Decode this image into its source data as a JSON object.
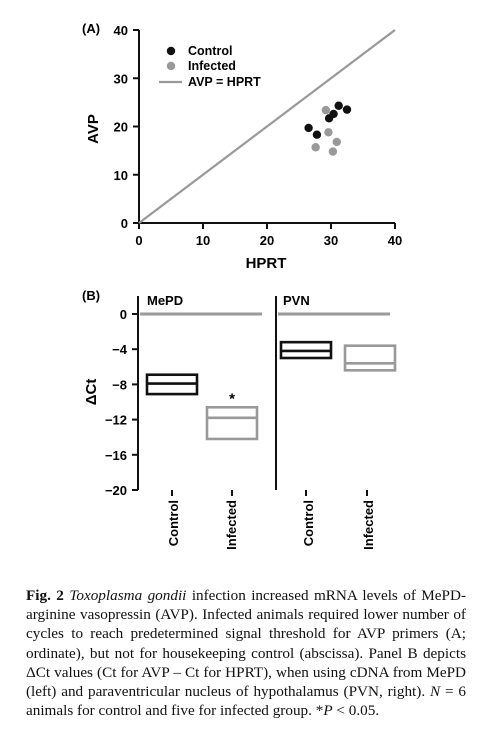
{
  "panelA": {
    "label": "(A)",
    "xlabel": "HPRT",
    "ylabel": "AVP",
    "xticks": [
      "0",
      "10",
      "20",
      "30",
      "40"
    ],
    "yticks": [
      "0",
      "10",
      "20",
      "30",
      "40"
    ],
    "legend": {
      "control": "Control",
      "infected": "Infected",
      "line": "AVP = HPRT"
    }
  },
  "panelB": {
    "label": "(B)",
    "ylabel": "ΔCt",
    "yticks": [
      "0",
      "−4",
      "−8",
      "−12",
      "−16",
      "−20"
    ],
    "left_title": "MePD",
    "right_title": "PVN",
    "xcat_control": "Control",
    "xcat_infected": "Infected",
    "star": "*"
  },
  "caption": {
    "fig_label": "Fig. 2",
    "species": "Toxoplasma gondii",
    "part1": " infection increased mRNA levels of MePD- arginine vasopressin (AVP). Infected animals required lower number of cycles to reach predetermined signal threshold for AVP primers (A; ordinate), but not for housekeeping control (abscissa). Panel B depicts ΔCt values (Ct for AVP – Ct for HPRT), when using cDNA from MePD (left) and paraventricular nucleus of hypothalamus (PVN, right). ",
    "n_label": "N",
    "part2": " = 6 animals for control and five for infected group. *",
    "p_label": "P",
    "part3": " < 0.05."
  },
  "chart_data": [
    {
      "type": "scatter",
      "xlabel": "HPRT",
      "ylabel": "AVP",
      "xlim": [
        0,
        40
      ],
      "ylim": [
        0,
        40
      ],
      "grid": false,
      "legend_position": "top-left",
      "colors": {
        "control": "#111111",
        "infected": "#999999",
        "line": "#999999"
      },
      "series": [
        {
          "name": "Control",
          "points": [
            [
              26.5,
              19.7
            ],
            [
              27.8,
              18.3
            ],
            [
              29.7,
              21.7
            ],
            [
              30.4,
              22.6
            ],
            [
              31.2,
              24.3
            ],
            [
              32.5,
              23.5
            ]
          ]
        },
        {
          "name": "Infected",
          "points": [
            [
              27.6,
              15.7
            ],
            [
              29.2,
              23.4
            ],
            [
              29.6,
              18.8
            ],
            [
              30.3,
              14.8
            ],
            [
              30.9,
              16.8
            ]
          ]
        }
      ],
      "reference_line": {
        "name": "AVP = HPRT",
        "from": [
          0,
          0
        ],
        "to": [
          40,
          40
        ]
      }
    },
    {
      "type": "box",
      "ylabel": "ΔCt",
      "ylim": [
        -20,
        0
      ],
      "reference_line_y": 0,
      "panels": [
        {
          "title": "MePD",
          "groups": [
            {
              "name": "Control",
              "low": -9.1,
              "mid": -7.9,
              "high": -6.9,
              "color": "#111111"
            },
            {
              "name": "Infected",
              "low": -14.2,
              "mid": -11.8,
              "high": -10.6,
              "color": "#999999",
              "annotation": "*"
            }
          ]
        },
        {
          "title": "PVN",
          "groups": [
            {
              "name": "Control",
              "low": -5.0,
              "mid": -4.2,
              "high": -3.2,
              "color": "#111111"
            },
            {
              "name": "Infected",
              "low": -6.4,
              "mid": -5.6,
              "high": -3.6,
              "color": "#999999"
            }
          ]
        }
      ]
    }
  ]
}
